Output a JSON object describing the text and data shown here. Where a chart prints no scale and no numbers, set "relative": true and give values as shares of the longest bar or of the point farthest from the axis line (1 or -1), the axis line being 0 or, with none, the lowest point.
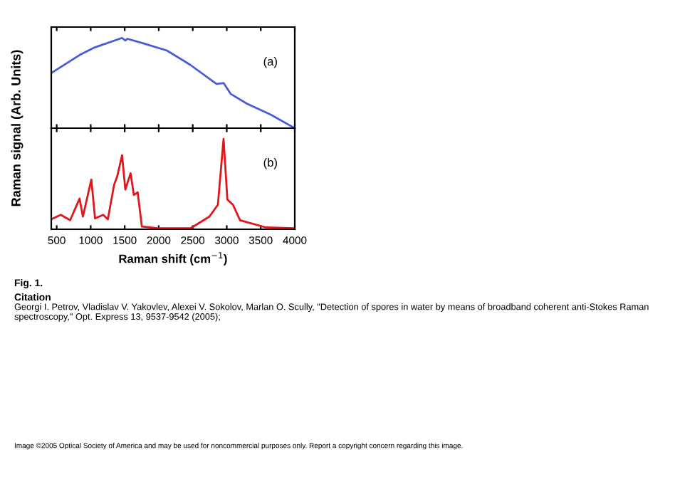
{
  "chart_data": [
    {
      "type": "line",
      "relative": true,
      "ylabel": "Raman signal (Arb. Units)",
      "xlim": [
        420,
        4000
      ],
      "xticks": [
        {
          "value": 500,
          "label": null
        },
        {
          "value": 1000,
          "label": null
        },
        {
          "value": 1500,
          "label": null
        },
        {
          "value": 2000,
          "label": null
        },
        {
          "value": 2500,
          "label": null
        },
        {
          "value": 3000,
          "label": null
        },
        {
          "value": 3500,
          "label": null
        },
        {
          "value": 4000,
          "label": null
        }
      ],
      "tick_labels": false,
      "grid": false,
      "legend": false,
      "annotations": [
        "(a)"
      ],
      "x": [
        420,
        836,
        1044,
        1461,
        1509,
        1540,
        1773,
        2120,
        2466,
        2849,
        2953,
        3057,
        3299,
        3646,
        4000
      ],
      "series": [
        {
          "color": "#4a5bd8",
          "values": [
            0.61,
            0.81,
            0.89,
            1.0,
            0.97,
            0.99,
            0.94,
            0.86,
            0.7,
            0.49,
            0.5,
            0.38,
            0.27,
            0.15,
            0.0
          ]
        }
      ]
    },
    {
      "type": "line",
      "relative": true,
      "xlabel": "Raman shift (cm$^{−1}$)",
      "xlim": [
        420,
        4000
      ],
      "xticks": [
        500,
        1000,
        1500,
        2000,
        2500,
        3000,
        3500,
        4000
      ],
      "tick_labels": "x",
      "grid": false,
      "legend": false,
      "annotations": [
        "(b)",
        "Fig. 1.",
        "Citation",
        "Georgi I. Petrov, Vladislav V. Yakovlev, Alexei V. Sokolov, Marlan O. Scully, \"Detection of spores in water by means of broadband coherent anti-Stokes Raman spectroscopy,\" Opt. Express 13, 9537-9542 (2005);",
        "Image ©2005 Optical Society of America and may be used for noncommercial purposes only. Report a copyright concern regarding this image."
      ],
      "x": [
        420,
        559,
        698,
        836,
        885,
        1009,
        1064,
        1183,
        1252,
        1343,
        1391,
        1461,
        1509,
        1586,
        1634,
        1690,
        1752,
        1981,
        2466,
        2744,
        2869,
        2953,
        3009,
        3092,
        3196,
        3577,
        4000
      ],
      "series": [
        {
          "color": "#e0161b",
          "values": [
            0.11,
            0.16,
            0.1,
            0.34,
            0.14,
            0.55,
            0.12,
            0.16,
            0.11,
            0.49,
            0.59,
            0.82,
            0.44,
            0.62,
            0.38,
            0.41,
            0.03,
            0.01,
            0.01,
            0.14,
            0.27,
            1.0,
            0.33,
            0.27,
            0.1,
            0.02,
            0.01
          ]
        }
      ]
    }
  ]
}
